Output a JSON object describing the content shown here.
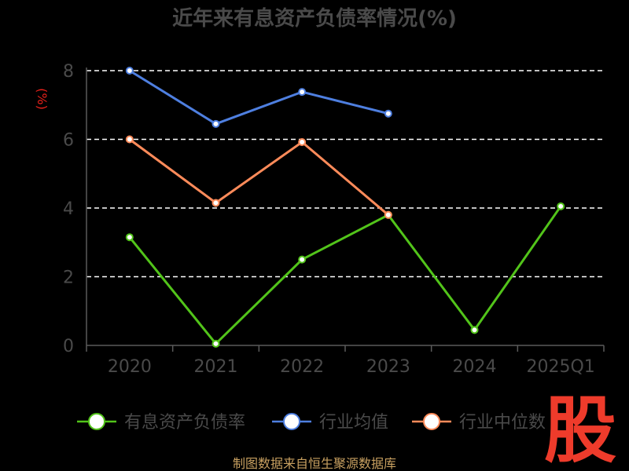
{
  "chart_data": {
    "type": "line",
    "title": "近年来有息资产负债率情况(%)",
    "ylabel": "(%)",
    "xlabel": "",
    "categories": [
      "2020",
      "2021",
      "2022",
      "2023",
      "2024",
      "2025Q1"
    ],
    "ylim": [
      0,
      8
    ],
    "yticks": [
      0,
      2,
      4,
      6,
      8
    ],
    "grid": true,
    "legend_position": "bottom",
    "series": [
      {
        "name": "有息资产负债率",
        "color": "#52c41a",
        "values": [
          3.15,
          0.05,
          2.5,
          3.8,
          0.45,
          4.05
        ]
      },
      {
        "name": "行业均值",
        "color": "#4e7fe0",
        "values": [
          8.0,
          6.45,
          7.38,
          6.75,
          null,
          null
        ]
      },
      {
        "name": "行业中位数",
        "color": "#ff8b5a",
        "values": [
          6.0,
          4.15,
          5.92,
          3.8,
          null,
          null
        ]
      }
    ]
  },
  "footer": {
    "source": "制图数据来自恒生聚源数据库"
  },
  "watermark": {
    "text": "股"
  }
}
